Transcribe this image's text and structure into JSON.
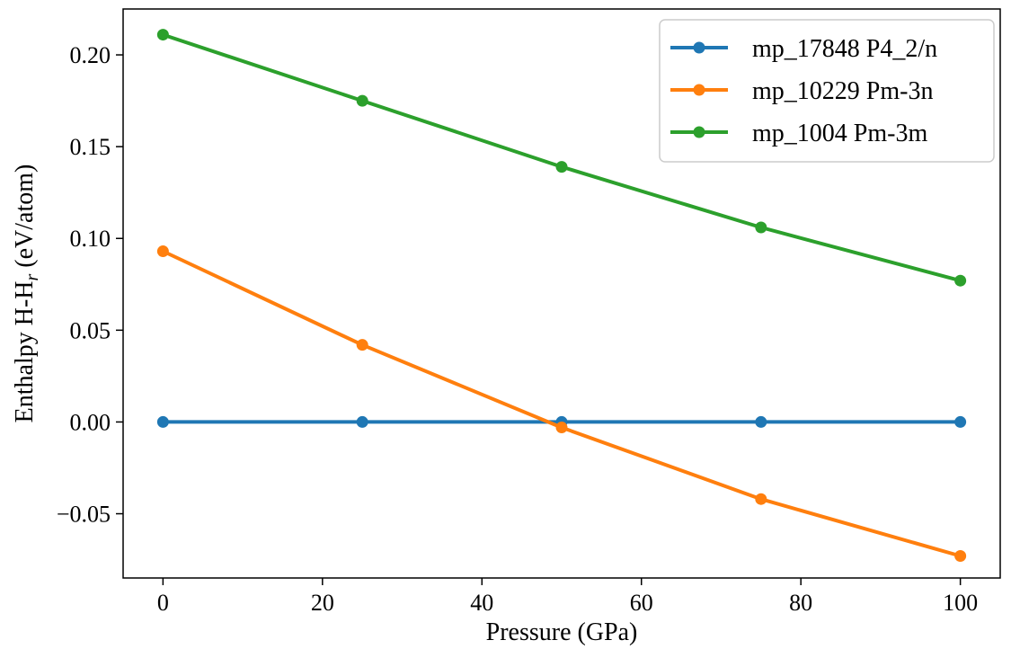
{
  "chart_data": {
    "type": "line",
    "xlabel": "Pressure (GPa)",
    "ylabel": {
      "main": "Enthalpy H-H",
      "subscript": "r",
      "unit": " (eV/atom)"
    },
    "x": [
      0,
      25,
      50,
      75,
      100
    ],
    "xlim": [
      -5,
      105
    ],
    "ylim": [
      -0.085,
      0.225
    ],
    "xticks": [
      0,
      20,
      40,
      60,
      80,
      100
    ],
    "xtick_labels": [
      "0",
      "20",
      "40",
      "60",
      "80",
      "100"
    ],
    "yticks": [
      -0.05,
      0.0,
      0.05,
      0.1,
      0.15,
      0.2
    ],
    "ytick_labels": [
      "−0.05",
      "0.00",
      "0.05",
      "0.10",
      "0.15",
      "0.20"
    ],
    "grid": false,
    "legend_position": "top-right",
    "series": [
      {
        "name": "mp_17848 P4_2/n",
        "color": "#1f77b4",
        "values": [
          0.0,
          0.0,
          0.0,
          0.0,
          0.0
        ]
      },
      {
        "name": "mp_10229 Pm-3n",
        "color": "#ff7f0e",
        "values": [
          0.093,
          0.042,
          -0.003,
          -0.042,
          -0.073
        ]
      },
      {
        "name": "mp_1004 Pm-3m",
        "color": "#2ca02c",
        "values": [
          0.211,
          0.175,
          0.139,
          0.106,
          0.077
        ]
      }
    ]
  }
}
